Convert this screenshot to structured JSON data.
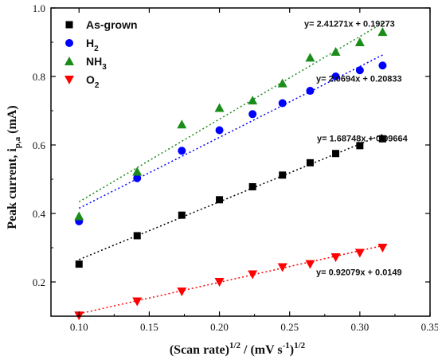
{
  "chart_data": {
    "type": "scatter",
    "title": "",
    "xlabel": {
      "main": "(Scan rate)",
      "sup1": "1/2",
      "mid": " / (mV s",
      "sup2": "-1",
      "end": ")",
      "sup3": "1/2"
    },
    "ylabel": {
      "main": "Peak current, i",
      "sub": "p,a",
      "end": " (mA)"
    },
    "xlim": [
      0.08,
      0.35
    ],
    "ylim": [
      0.1,
      1.0
    ],
    "xticks": [
      "0.10",
      "0.15",
      "0.20",
      "0.25",
      "0.30",
      "0.35"
    ],
    "yticks": [
      "0.2",
      "0.4",
      "0.6",
      "0.8",
      "1.0"
    ],
    "legend_position": "top-left",
    "x": [
      0.1,
      0.1414,
      0.1732,
      0.2,
      0.2236,
      0.2449,
      0.2646,
      0.2828,
      0.3,
      0.3162
    ],
    "series": [
      {
        "name": "As-grown",
        "marker": "square",
        "color": "#000000",
        "values": [
          0.252,
          0.335,
          0.395,
          0.44,
          0.478,
          0.512,
          0.548,
          0.575,
          0.598,
          0.618
        ],
        "fit": {
          "slope": 1.68748,
          "intercept": 0.09664,
          "label": "y= 1.68748x + 0.09664"
        }
      },
      {
        "name_parts": [
          "H",
          "2",
          ""
        ],
        "marker": "circle",
        "color": "#0000ff",
        "values": [
          0.377,
          0.503,
          0.583,
          0.643,
          0.69,
          0.722,
          0.758,
          0.8,
          0.818,
          0.832
        ],
        "fit": {
          "slope": 2.0694,
          "intercept": 0.20833,
          "label": "y= 2.0694x + 0.20833"
        }
      },
      {
        "name_parts": [
          "NH",
          "3",
          ""
        ],
        "marker": "triangle-up",
        "color": "#1a8c1a",
        "values": [
          0.392,
          0.522,
          0.66,
          0.708,
          0.73,
          0.78,
          0.855,
          0.872,
          0.9,
          0.93
        ],
        "fit": {
          "slope": 2.41271,
          "intercept": 0.19273,
          "label": "y= 2.41271x + 0.19273"
        }
      },
      {
        "name_parts": [
          "O",
          "2",
          ""
        ],
        "marker": "triangle-down",
        "color": "#ff0000",
        "values": [
          0.102,
          0.143,
          0.172,
          0.2,
          0.222,
          0.243,
          0.252,
          0.272,
          0.285,
          0.3
        ],
        "fit": {
          "slope": 0.92079,
          "intercept": 0.0149,
          "label": "y= 0.92079x + 0.0149"
        }
      }
    ]
  }
}
